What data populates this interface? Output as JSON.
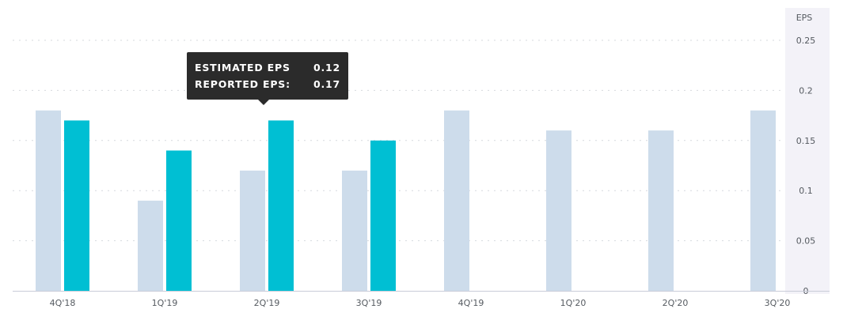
{
  "chart_data": {
    "type": "bar",
    "ylabel": "EPS",
    "ylim": [
      0,
      0.25
    ],
    "yticks": [
      "0",
      "0.05",
      "0.1",
      "0.15",
      "0.2",
      "0.25"
    ],
    "categories": [
      "4Q'18",
      "1Q'19",
      "2Q'19",
      "3Q'19",
      "4Q'19",
      "1Q'20",
      "2Q'20",
      "3Q'20"
    ],
    "series": [
      {
        "name": "Estimated EPS",
        "color": "#cddceb",
        "values": [
          0.18,
          0.09,
          0.12,
          0.12,
          0.18,
          0.16,
          0.16,
          0.18
        ]
      },
      {
        "name": "Reported EPS",
        "color": "#00bfd3",
        "values": [
          0.17,
          0.14,
          0.17,
          0.15,
          null,
          null,
          null,
          null
        ]
      }
    ],
    "grid": true
  },
  "tooltip": {
    "estimated_label": "ESTIMATED EPS",
    "estimated_value": "0.12",
    "reported_label": "REPORTED EPS:",
    "reported_value": "0.17"
  }
}
